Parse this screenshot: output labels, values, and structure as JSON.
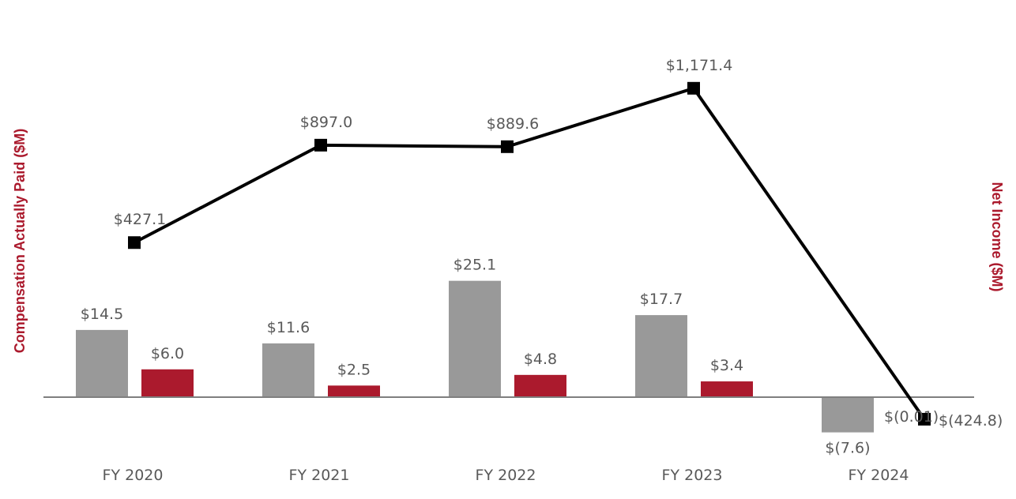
{
  "chart_data": {
    "type": "bar+line",
    "categories": [
      "FY 2020",
      "FY 2021",
      "FY 2022",
      "FY 2023",
      "FY 2024"
    ],
    "left_axis_title": "Compensation Actually Paid ($M)",
    "right_axis_title": "Net Income ($M)",
    "series": [
      {
        "name": "Compensation Actually Paid",
        "kind": "bar",
        "color": "#999999",
        "values": [
          14.5,
          11.6,
          25.1,
          17.7,
          -7.6
        ],
        "labels": [
          "$14.5",
          "$11.6",
          "$25.1",
          "$17.7",
          "$(7.6)"
        ]
      },
      {
        "name": "Compensation Actually Paid (second bar)",
        "kind": "bar",
        "color": "#ab1a2d",
        "values": [
          6.0,
          2.5,
          4.8,
          3.4,
          -0.01
        ],
        "labels": [
          "$6.0",
          "$2.5",
          "$4.8",
          "$3.4",
          "$(0.01)"
        ]
      },
      {
        "name": "Net Income",
        "kind": "line",
        "color": "#000000",
        "values": [
          427.1,
          897.0,
          889.6,
          1171.4,
          -424.8
        ],
        "labels": [
          "$427.1",
          "$897.0",
          "$889.6",
          "$1,171.4",
          "$(424.8)"
        ]
      }
    ],
    "ylim_left": [
      -10,
      30
    ],
    "ylim_right": [
      -500,
      1300
    ]
  }
}
